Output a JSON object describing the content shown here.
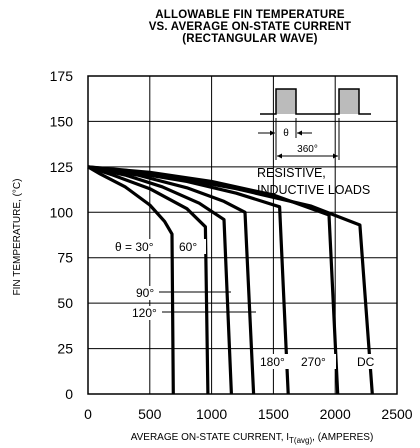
{
  "chart_data": {
    "type": "line",
    "title": [
      "ALLOWABLE FIN TEMPERATURE",
      "VS. AVERAGE ON-STATE CURRENT",
      "(RECTANGULAR WAVE)"
    ],
    "xlabel_main": "AVERAGE ON-STATE CURRENT, I",
    "xlabel_sub": "T(avg)",
    "xlabel_tail": ", (AMPERES)",
    "ylabel": "FIN TEMPERATURE, (°C)",
    "xlim": [
      0,
      2500
    ],
    "ylim": [
      0,
      175
    ],
    "xticks": [
      0,
      500,
      1000,
      1500,
      2000,
      2500
    ],
    "yticks": [
      0,
      25,
      50,
      75,
      100,
      125,
      150,
      175
    ],
    "grid": true,
    "series": [
      {
        "name": "θ = 30°",
        "x": [
          0,
          100,
          300,
          500,
          620,
          680,
          690
        ],
        "y": [
          125,
          121,
          114,
          104,
          95,
          88,
          0
        ]
      },
      {
        "name": "60°",
        "x": [
          0,
          200,
          500,
          800,
          950,
          970
        ],
        "y": [
          125,
          120.5,
          113,
          102,
          92,
          0
        ]
      },
      {
        "name": "90°",
        "x": [
          0,
          300,
          600,
          900,
          1100,
          1160
        ],
        "y": [
          125,
          120.5,
          114,
          105,
          96,
          0
        ]
      },
      {
        "name": "120°",
        "x": [
          0,
          400,
          800,
          1100,
          1270,
          1340
        ],
        "y": [
          125,
          120.5,
          113.5,
          106,
          100,
          0
        ]
      },
      {
        "name": "180°",
        "x": [
          0,
          400,
          800,
          1200,
          1550,
          1620
        ],
        "y": [
          125,
          121.5,
          117,
          110.5,
          103,
          0
        ]
      },
      {
        "name": "270°",
        "x": [
          0,
          500,
          1000,
          1500,
          1950,
          2020
        ],
        "y": [
          125,
          122,
          117,
          109.5,
          98.5,
          0
        ]
      },
      {
        "name": "DC",
        "x": [
          0,
          600,
          1200,
          1800,
          2200,
          2300
        ],
        "y": [
          125,
          120.5,
          113,
          103.5,
          93,
          0
        ]
      }
    ],
    "curve_labels": [
      "θ = 30°",
      "60°",
      "90°",
      "120°",
      "180°",
      "270°",
      "DC"
    ],
    "inset": {
      "theta_label": "θ",
      "period_label": "360°",
      "note_line1": "RESISTIVE,",
      "note_line2": "INDUCTIVE LOADS"
    }
  }
}
